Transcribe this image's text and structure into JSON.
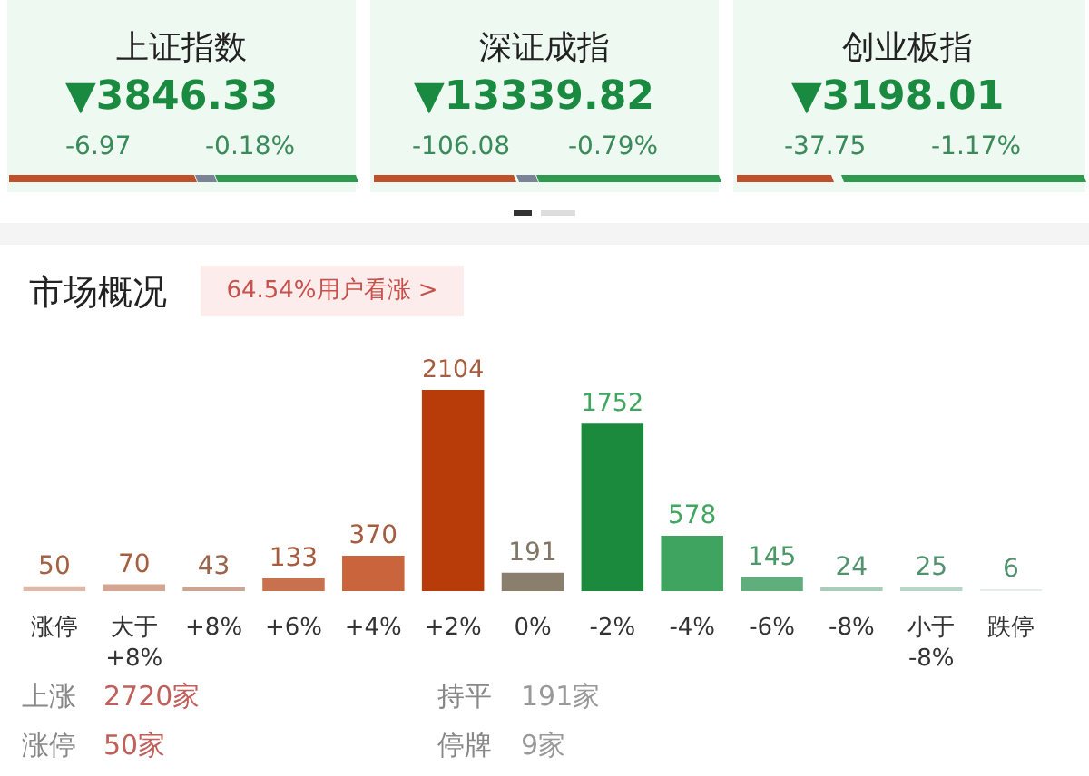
{
  "chart_data": {
    "type": "bar",
    "title": "市场概况",
    "subtitle": "64.54%用户看涨 >",
    "categories": [
      "涨停",
      "大于\n+8%",
      "+8%",
      "+6%",
      "+4%",
      "+2%",
      "0%",
      "-2%",
      "-4%",
      "-6%",
      "-8%",
      "小于\n-8%",
      "跌停"
    ],
    "values": [
      50,
      70,
      43,
      133,
      370,
      2104,
      191,
      1752,
      578,
      145,
      24,
      25,
      6
    ],
    "colors": [
      "#dcb9a8",
      "#d4a590",
      "#cba592",
      "#c9714f",
      "#c9643c",
      "#b83c0a",
      "#8a7f6c",
      "#1b8a3c",
      "#3fa45f",
      "#5fae7c",
      "#a8cdb8",
      "#b8d6c6",
      "#e3efe8"
    ],
    "data_labels": true,
    "tick_labels": "x",
    "annotations": [
      "上证指数",
      "▼3846.33",
      "-6.97",
      "-0.18%",
      "深证成指",
      "▼13339.82",
      "-106.08",
      "-0.79%",
      "创业板指",
      "▼3198.01",
      "-37.75",
      "-1.17%",
      "上涨",
      "2720家",
      "持平",
      "191家",
      "涨停",
      "50家",
      "停牌",
      "9家"
    ]
  }
}
